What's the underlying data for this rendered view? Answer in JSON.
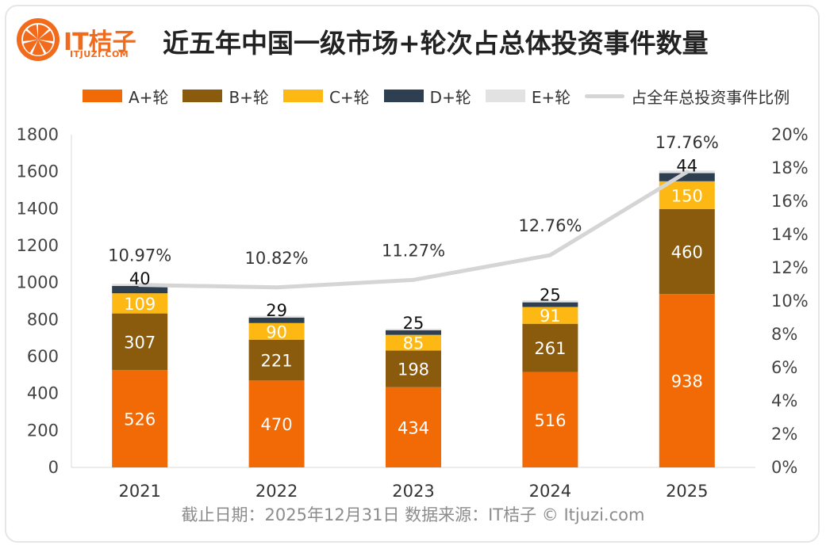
{
  "logo": {
    "brand": "IT桔子",
    "sub": "ITJUZI.COM"
  },
  "title": "近五年中国一级市场+轮次占总体投资事件数量",
  "footer": "截止日期：2025年12月31日    数据来源：IT桔子 © Itjuzi.com",
  "colors": {
    "A": "#f26a05",
    "B": "#8a5a0d",
    "C": "#fdb813",
    "D": "#2e3f52",
    "E": "#e2e2e2",
    "line": "#d5d5d5"
  },
  "chart_data": {
    "type": "bar",
    "stacked": true,
    "categories": [
      "2021",
      "2022",
      "2023",
      "2024",
      "2025"
    ],
    "series": [
      {
        "name": "A+轮",
        "key": "A",
        "values": [
          526,
          470,
          434,
          516,
          938
        ]
      },
      {
        "name": "B+轮",
        "key": "B",
        "values": [
          307,
          221,
          198,
          261,
          460
        ]
      },
      {
        "name": "C+轮",
        "key": "C",
        "values": [
          109,
          90,
          85,
          91,
          150
        ]
      },
      {
        "name": "D+轮",
        "key": "D",
        "values": [
          40,
          29,
          25,
          25,
          44
        ]
      },
      {
        "name": "E+轮",
        "key": "E",
        "values": [
          12,
          10,
          8,
          10,
          14
        ]
      }
    ],
    "line_series": {
      "name": "占全年总投资事件比例",
      "values": [
        10.97,
        10.82,
        11.27,
        12.76,
        17.76
      ],
      "labels": [
        "10.97%",
        "10.82%",
        "11.27%",
        "12.76%",
        "17.76%"
      ]
    },
    "y_left": {
      "min": 0,
      "max": 1800,
      "ticks": [
        "0",
        "200",
        "400",
        "600",
        "800",
        "1000",
        "1200",
        "1400",
        "1600",
        "1800"
      ]
    },
    "y_right": {
      "min": 0,
      "max": 20,
      "ticks": [
        "0%",
        "2%",
        "4%",
        "6%",
        "8%",
        "10%",
        "12%",
        "14%",
        "16%",
        "18%",
        "20%"
      ]
    },
    "legend_position": "top"
  }
}
